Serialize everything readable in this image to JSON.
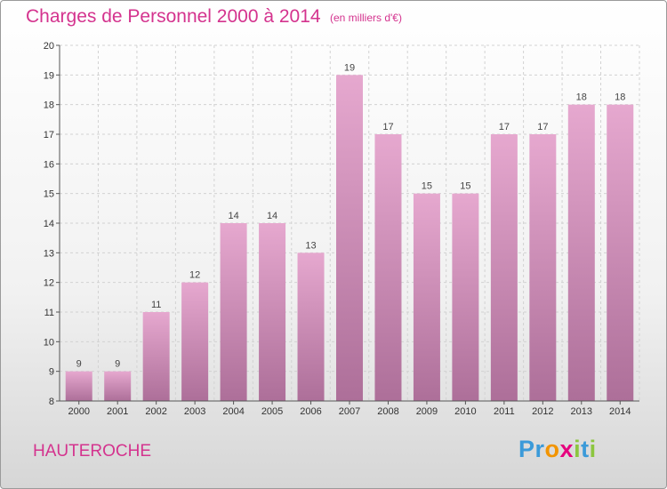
{
  "header": {
    "title": "Charges de Personnel 2000 à 2014",
    "subtitle": "(en milliers d'€)"
  },
  "footer": {
    "commune": "HAUTEROCHE",
    "logo": [
      {
        "ch": "P",
        "color": "#3b9ad9"
      },
      {
        "ch": "r",
        "color": "#3b9ad9"
      },
      {
        "ch": "o",
        "color": "#f29400"
      },
      {
        "ch": "x",
        "color": "#e6007e"
      },
      {
        "ch": "i",
        "color": "#8cc63f"
      },
      {
        "ch": "t",
        "color": "#3b9ad9"
      },
      {
        "ch": "i",
        "color": "#8cc63f"
      }
    ]
  },
  "chart_data": {
    "type": "bar",
    "categories": [
      "2000",
      "2001",
      "2002",
      "2003",
      "2004",
      "2005",
      "2006",
      "2007",
      "2008",
      "2009",
      "2010",
      "2011",
      "2012",
      "2013",
      "2014"
    ],
    "values": [
      9,
      9,
      11,
      12,
      14,
      14,
      13,
      19,
      17,
      15,
      15,
      17,
      17,
      18,
      18
    ],
    "ylim": [
      8,
      20
    ],
    "yticks": [
      8,
      9,
      10,
      11,
      12,
      13,
      14,
      15,
      16,
      17,
      18,
      19,
      20
    ],
    "grid": true,
    "bar_color_top": "#e6a8cf",
    "bar_color_bottom": "#ad6f99"
  }
}
